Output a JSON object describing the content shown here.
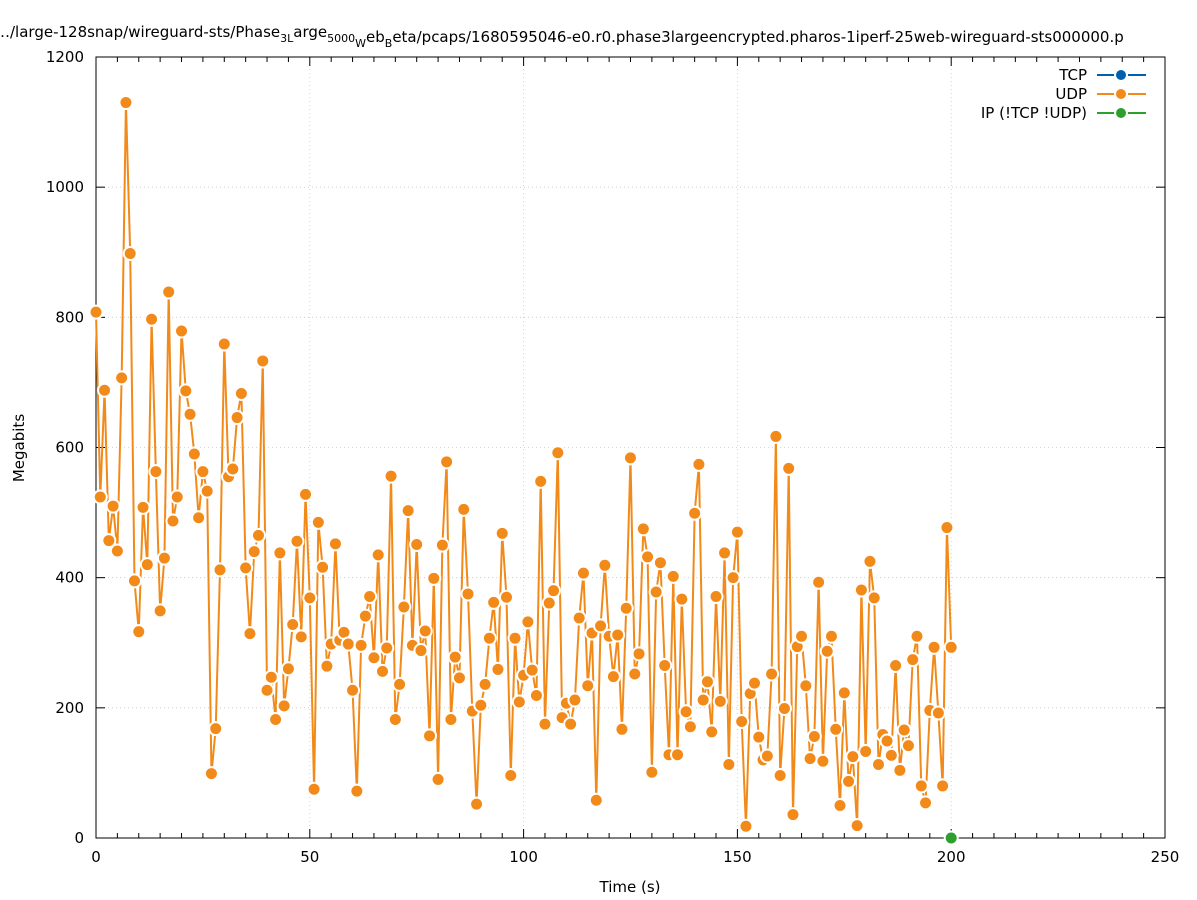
{
  "chart_data": {
    "type": "line",
    "title": "…/large-128snap/wireguard-sts/Phase3Large5000WebBeta/pcaps/1680595046-e0.r0.phase3largeencrypted.pharos-1iperf-25web-wireguard-sts000000.p",
    "title_parts": {
      "p1": "…/large-128snap/wireguard-sts/Phase",
      "s1": "3L",
      "p2": "arge",
      "s2": "5000",
      "p3": "",
      "s3": "W",
      "p4": "eb",
      "s4": "B",
      "p5": "eta/pcaps/1680595046-e0.r0.phase3largeencrypted.pharos-1iperf-25web-wireguard-sts000000.p"
    },
    "xlabel": "Time (s)",
    "ylabel": "Megabits",
    "xlim": [
      0,
      250
    ],
    "ylim": [
      0,
      1200
    ],
    "xticks": [
      0,
      50,
      100,
      150,
      200,
      250
    ],
    "yticks": [
      0,
      200,
      400,
      600,
      800,
      1000,
      1200
    ],
    "grid": true,
    "legend_position": "top-right",
    "series": [
      {
        "name": "TCP",
        "color": "#0060ad",
        "x": [],
        "y": []
      },
      {
        "name": "UDP",
        "color": "#f28a1a",
        "x": [
          0,
          1,
          2,
          3,
          4,
          5,
          6,
          7,
          8,
          9,
          10,
          11,
          12,
          13,
          14,
          15,
          16,
          17,
          18,
          19,
          20,
          21,
          22,
          23,
          24,
          25,
          26,
          27,
          28,
          29,
          30,
          31,
          32,
          33,
          34,
          35,
          36,
          37,
          38,
          39,
          40,
          41,
          42,
          43,
          44,
          45,
          46,
          47,
          48,
          49,
          50,
          51,
          52,
          53,
          54,
          55,
          56,
          57,
          58,
          59,
          60,
          61,
          62,
          63,
          64,
          65,
          66,
          67,
          68,
          69,
          70,
          71,
          72,
          73,
          74,
          75,
          76,
          77,
          78,
          79,
          80,
          81,
          82,
          83,
          84,
          85,
          86,
          87,
          88,
          89,
          90,
          91,
          92,
          93,
          94,
          95,
          96,
          97,
          98,
          99,
          100,
          101,
          102,
          103,
          104,
          105,
          106,
          107,
          108,
          109,
          110,
          111,
          112,
          113,
          114,
          115,
          116,
          117,
          118,
          119,
          120,
          121,
          122,
          123,
          124,
          125,
          126,
          127,
          128,
          129,
          130,
          131,
          132,
          133,
          134,
          135,
          136,
          137,
          138,
          139,
          140,
          141,
          142,
          143,
          144,
          145,
          146,
          147,
          148,
          149,
          150,
          151,
          152,
          153,
          154,
          155,
          156,
          157,
          158,
          159,
          160,
          161,
          162,
          163,
          164,
          165,
          166,
          167,
          168,
          169,
          170,
          171,
          172,
          173,
          174,
          175,
          176,
          177,
          178,
          179,
          180,
          181,
          182,
          183,
          184,
          185,
          186,
          187,
          188,
          189,
          190,
          191,
          192,
          193,
          194,
          195,
          196,
          197,
          198,
          199,
          200
        ],
        "y": [
          808,
          524,
          688,
          457,
          510,
          441,
          707,
          1130,
          898,
          395,
          317,
          508,
          420,
          797,
          563,
          349,
          430,
          839,
          487,
          524,
          779,
          687,
          651,
          590,
          492,
          563,
          533,
          99,
          168,
          412,
          759,
          555,
          567,
          646,
          683,
          415,
          314,
          440,
          465,
          733,
          227,
          247,
          182,
          438,
          203,
          260,
          328,
          456,
          309,
          528,
          369,
          75,
          485,
          416,
          264,
          298,
          452,
          304,
          316,
          298,
          227,
          72,
          296,
          341,
          371,
          277,
          435,
          256,
          292,
          556,
          182,
          236,
          355,
          503,
          296,
          451,
          288,
          318,
          157,
          399,
          90,
          450,
          578,
          182,
          278,
          246,
          505,
          375,
          195,
          52,
          204,
          236,
          307,
          362,
          259,
          468,
          370,
          96,
          307,
          209,
          250,
          332,
          258,
          219,
          548,
          175,
          361,
          380,
          592,
          185,
          207,
          175,
          212,
          338,
          407,
          234,
          315,
          58,
          326,
          419,
          310,
          248,
          312,
          167,
          353,
          584,
          252,
          283,
          475,
          432,
          101,
          378,
          423,
          265,
          128,
          402,
          128,
          367,
          194,
          171,
          499,
          574,
          212,
          240,
          163,
          371,
          210,
          438,
          113,
          400,
          470,
          179,
          18,
          222,
          238,
          155,
          120,
          126,
          252,
          617,
          96,
          199,
          568,
          36,
          294,
          310,
          234,
          122,
          156,
          393,
          118,
          287,
          310,
          167,
          50,
          223,
          87,
          125,
          19,
          381,
          133,
          425,
          369,
          113,
          159,
          149,
          127,
          265,
          104,
          166,
          142,
          274,
          310,
          80,
          54,
          196,
          293,
          192,
          80,
          477,
          293
        ]
      },
      {
        "name": "IP (!TCP  !UDP)",
        "color": "#2ca02c",
        "x": [
          200
        ],
        "y": [
          0
        ]
      }
    ]
  }
}
